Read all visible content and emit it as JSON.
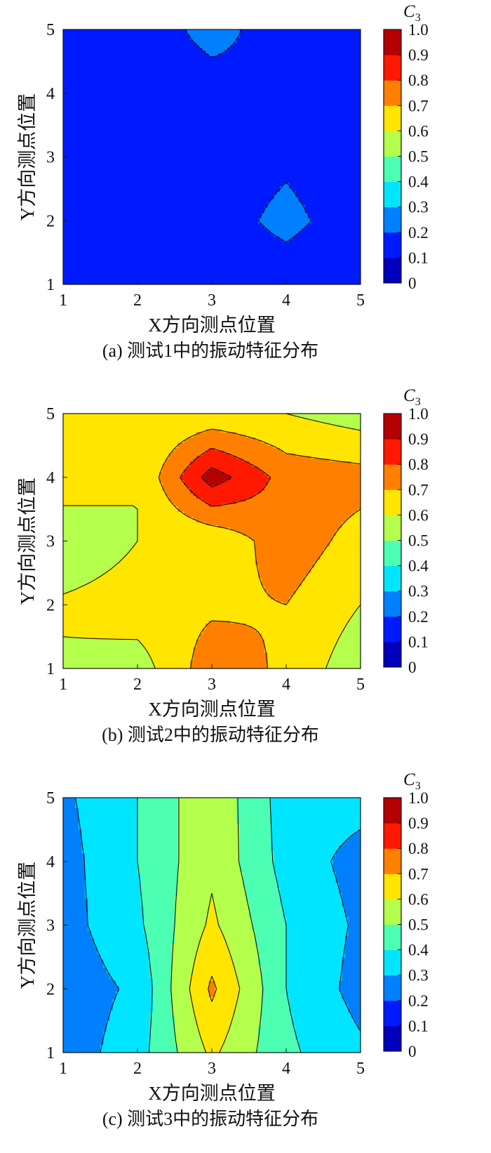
{
  "chart_data": [
    {
      "type": "heatmap",
      "subtype": "filled-contour",
      "caption": "(a)  测试1中的振动特征分布",
      "xlabel": "X方向测点位置",
      "ylabel": "Y方向测点位置",
      "x": [
        1,
        2,
        3,
        4,
        5
      ],
      "y": [
        1,
        2,
        3,
        4,
        5
      ],
      "xlim": [
        1,
        5
      ],
      "ylim": [
        1,
        5
      ],
      "xticks": [
        "1",
        "2",
        "3",
        "4",
        "5"
      ],
      "yticks": [
        "1",
        "2",
        "3",
        "4",
        "5"
      ],
      "z": [
        [
          0.13,
          0.13,
          0.14,
          0.14,
          0.13
        ],
        [
          0.13,
          0.13,
          0.15,
          0.23,
          0.14
        ],
        [
          0.13,
          0.14,
          0.14,
          0.18,
          0.13
        ],
        [
          0.13,
          0.13,
          0.15,
          0.19,
          0.14
        ],
        [
          0.13,
          0.13,
          0.24,
          0.14,
          0.13
        ]
      ],
      "colorbar": {
        "label": "C3",
        "label_main": "C",
        "label_sub": "3",
        "min": 0,
        "max": 1,
        "ticks": [
          "0",
          "0.1",
          "0.2",
          "0.3",
          "0.4",
          "0.5",
          "0.6",
          "0.7",
          "0.8",
          "0.9",
          "1.0"
        ]
      },
      "colormap": "jet"
    },
    {
      "type": "heatmap",
      "subtype": "filled-contour",
      "caption": "(b)  测试2中的振动特征分布",
      "xlabel": "X方向测点位置",
      "ylabel": "Y方向测点位置",
      "x": [
        1,
        2,
        3,
        4,
        5
      ],
      "y": [
        1,
        2,
        3,
        4,
        5
      ],
      "xlim": [
        1,
        5
      ],
      "ylim": [
        1,
        5
      ],
      "xticks": [
        "1",
        "2",
        "3",
        "4",
        "5"
      ],
      "yticks": [
        "1",
        "2",
        "3",
        "4",
        "5"
      ],
      "z": [
        [
          0.58,
          0.55,
          0.76,
          0.68,
          0.53
        ],
        [
          0.62,
          0.66,
          0.68,
          0.7,
          0.6
        ],
        [
          0.5,
          0.6,
          0.62,
          0.76,
          0.66
        ],
        [
          0.68,
          0.6,
          0.95,
          0.76,
          0.74
        ],
        [
          0.6,
          0.6,
          0.62,
          0.6,
          0.55
        ]
      ],
      "colorbar": {
        "label": "C3",
        "label_main": "C",
        "label_sub": "3",
        "min": 0,
        "max": 1,
        "ticks": [
          "0",
          "0.1",
          "0.2",
          "0.3",
          "0.4",
          "0.5",
          "0.6",
          "0.7",
          "0.8",
          "0.9",
          "1.0"
        ]
      },
      "colormap": "jet"
    },
    {
      "type": "heatmap",
      "subtype": "filled-contour",
      "caption": "(c)  测试3中的振动特征分布",
      "xlabel": "X方向测点位置",
      "ylabel": "Y方向测点位置",
      "x": [
        1,
        2,
        3,
        4,
        5
      ],
      "y": [
        1,
        2,
        3,
        4,
        5
      ],
      "xlim": [
        1,
        5
      ],
      "ylim": [
        1,
        5
      ],
      "xticks": [
        "1",
        "2",
        "3",
        "4",
        "5"
      ],
      "yticks": [
        "1",
        "2",
        "3",
        "4",
        "5"
      ],
      "z": [
        [
          0.24,
          0.36,
          0.62,
          0.42,
          0.32
        ],
        [
          0.24,
          0.32,
          0.72,
          0.4,
          0.26
        ],
        [
          0.26,
          0.38,
          0.62,
          0.4,
          0.28
        ],
        [
          0.26,
          0.4,
          0.58,
          0.36,
          0.26
        ],
        [
          0.28,
          0.4,
          0.58,
          0.35,
          0.34
        ]
      ],
      "colorbar": {
        "label": "C3",
        "label_main": "C",
        "label_sub": "3",
        "min": 0,
        "max": 1,
        "ticks": [
          "0",
          "0.1",
          "0.2",
          "0.3",
          "0.4",
          "0.5",
          "0.6",
          "0.7",
          "0.8",
          "0.9",
          "1.0"
        ]
      },
      "colormap": "jet"
    }
  ]
}
